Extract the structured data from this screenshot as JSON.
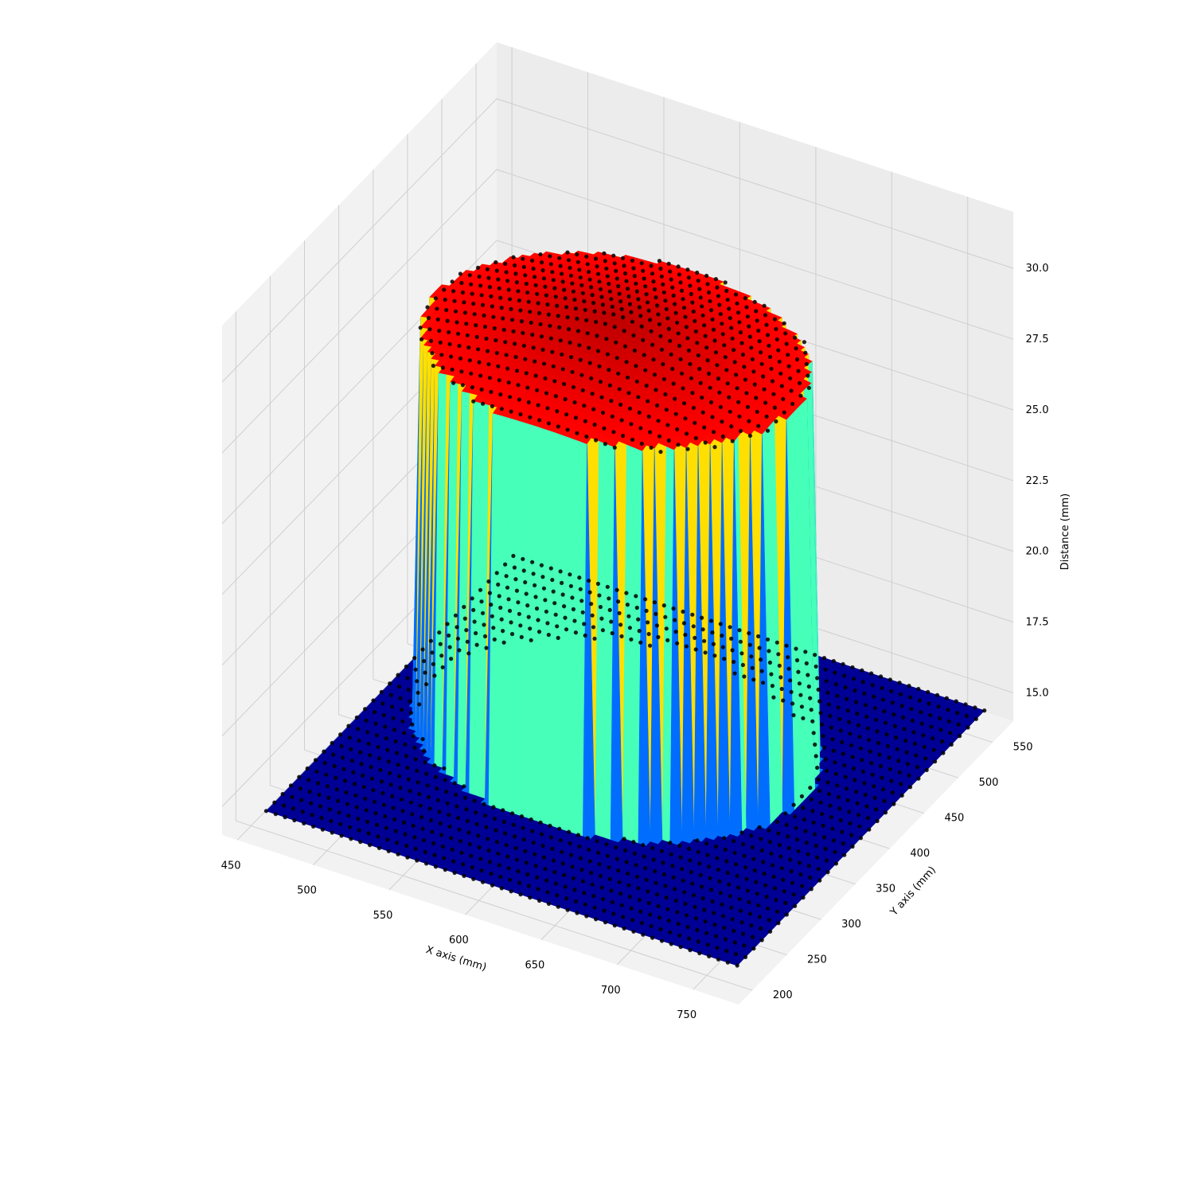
{
  "chart_data": {
    "type": "surface3d",
    "title": "",
    "xlabel": "X axis (mm)",
    "ylabel": "Y axis (mm)",
    "zlabel": "Distance (mm)",
    "x_ticks": [
      "450",
      "500",
      "550",
      "600",
      "650",
      "700",
      "750"
    ],
    "y_ticks": [
      "200",
      "250",
      "300",
      "350",
      "400",
      "450",
      "500",
      "550"
    ],
    "z_ticks": [
      "15.0",
      "17.5",
      "20.0",
      "22.5",
      "25.0",
      "27.5",
      "30.0"
    ],
    "xlim": [
      440,
      780
    ],
    "ylim": [
      180,
      580
    ],
    "zlim": [
      14,
      32
    ],
    "colormap": "jet",
    "grid": true,
    "surface": {
      "description_free_values": {
        "base_height": 14.7,
        "top_height": 29.6,
        "platform_x_range": [
          460,
          770
        ],
        "platform_y_range": [
          200,
          560
        ],
        "object_radius": 120,
        "object_center": [
          600,
          400
        ]
      }
    },
    "scatter_color": "#000000"
  }
}
